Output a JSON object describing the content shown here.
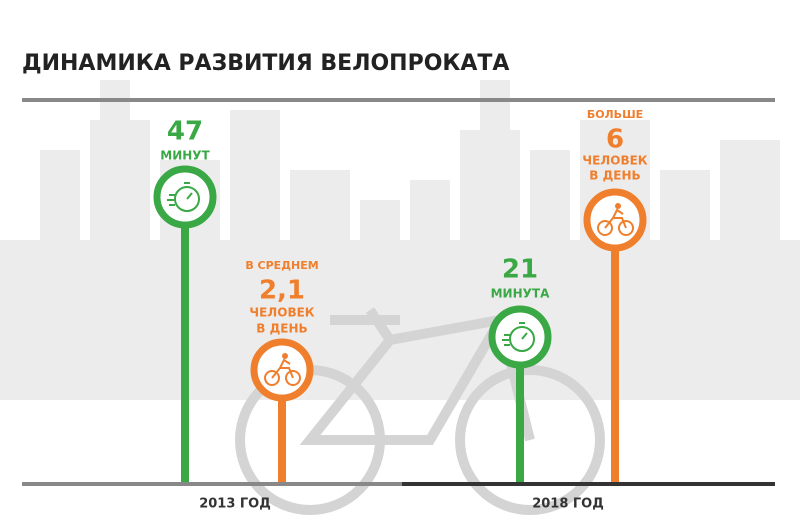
{
  "title": "ДИНАМИКА РАЗВИТИЯ ВЕЛОПРОКАТА",
  "years": [
    "2013 ГОД",
    "2018 ГОД"
  ],
  "items": [
    {
      "value": "47",
      "unit": "МИНУТ"
    },
    {
      "prefix": "В СРЕДНЕМ",
      "value": "2,1",
      "unit": "ЧЕЛОВЕК",
      "unit2": "В ДЕНЬ"
    },
    {
      "value": "21",
      "unit": "МИНУТА"
    },
    {
      "prefix": "БОЛЬШЕ",
      "value": "6",
      "unit": "ЧЕЛОВЕК",
      "unit2": "В ДЕНЬ"
    }
  ]
}
